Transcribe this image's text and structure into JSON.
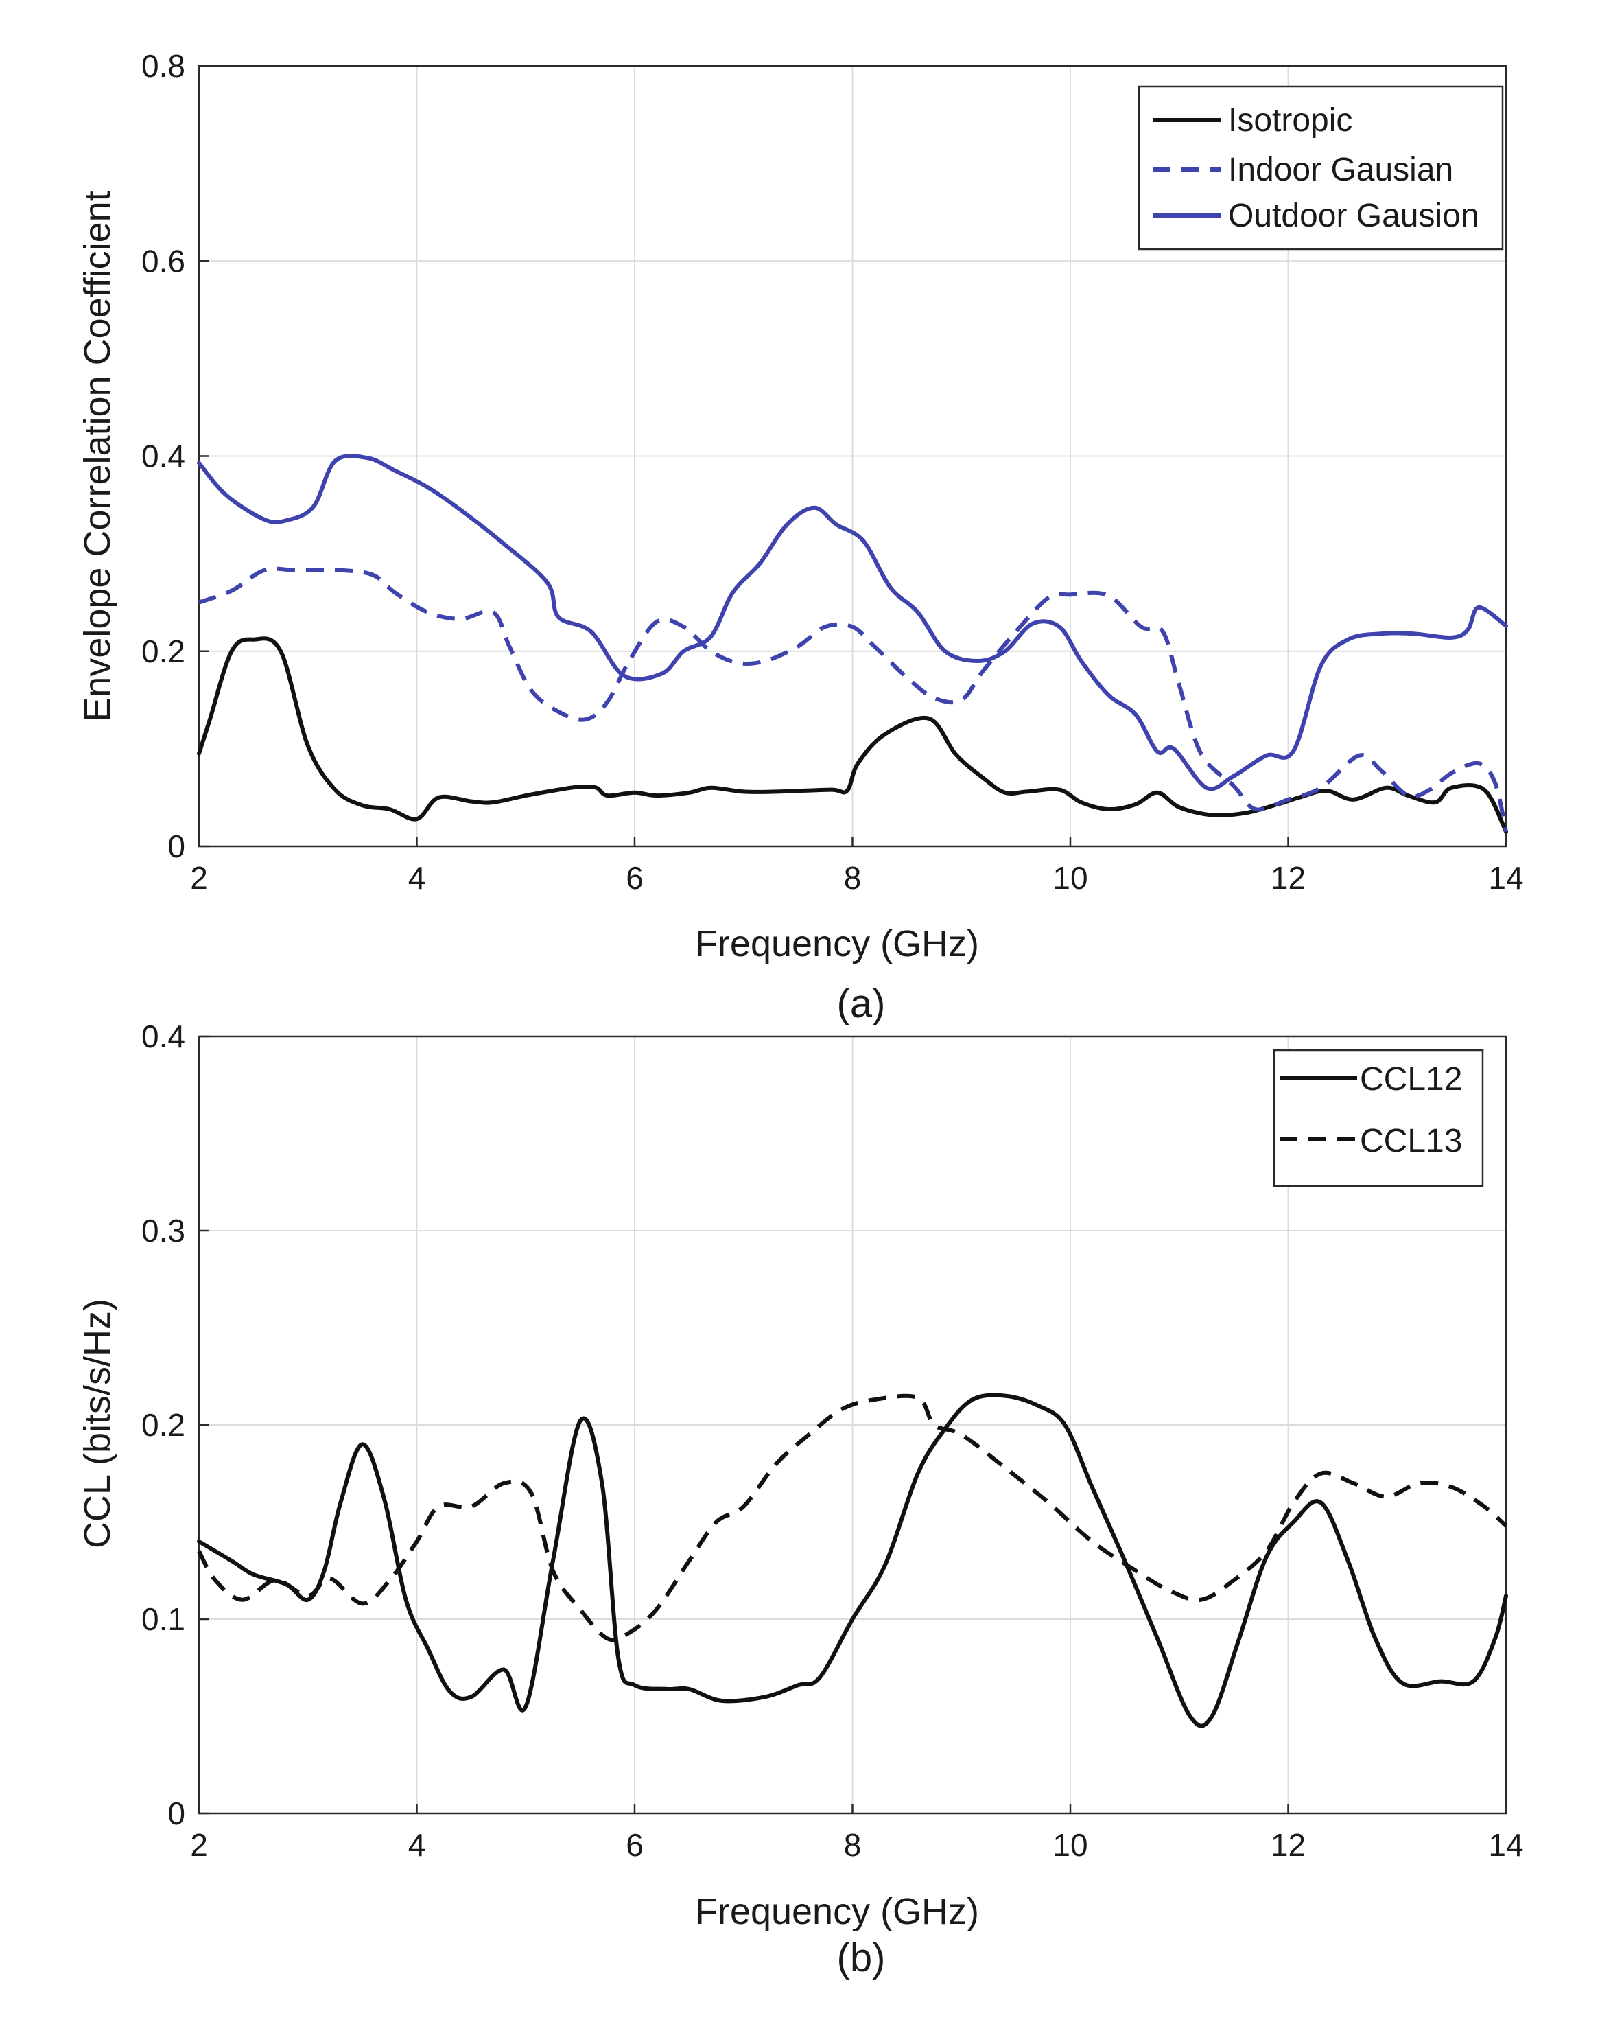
{
  "chart_data": [
    {
      "type": "line",
      "id": "a",
      "caption": "(a)",
      "xlabel": "Frequency (GHz)",
      "ylabel": "Envelope Correlation Coefficient",
      "xlim": [
        2,
        14
      ],
      "ylim": [
        0,
        0.8
      ],
      "xticks": [
        2,
        4,
        6,
        8,
        10,
        12,
        14
      ],
      "yticks": [
        0,
        0.2,
        0.4,
        0.6,
        0.8
      ],
      "xtick_labels": [
        "2",
        "4",
        "6",
        "8",
        "10",
        "12",
        "14"
      ],
      "ytick_labels": [
        "0",
        "0.2",
        "0.4",
        "0.6",
        "0.8"
      ],
      "grid": true,
      "legend_position": "top-right",
      "series": [
        {
          "name": "Isotropic",
          "color": "#111111",
          "dash": "solid",
          "points": [
            [
              2.0,
              0.095
            ],
            [
              2.1,
              0.13
            ],
            [
              2.3,
              0.2
            ],
            [
              2.5,
              0.212
            ],
            [
              2.75,
              0.2
            ],
            [
              3.0,
              0.103
            ],
            [
              3.25,
              0.058
            ],
            [
              3.5,
              0.042
            ],
            [
              3.75,
              0.038
            ],
            [
              4.0,
              0.028
            ],
            [
              4.2,
              0.05
            ],
            [
              4.5,
              0.046
            ],
            [
              4.7,
              0.045
            ],
            [
              5.0,
              0.052
            ],
            [
              5.3,
              0.058
            ],
            [
              5.5,
              0.061
            ],
            [
              5.65,
              0.06
            ],
            [
              5.75,
              0.052
            ],
            [
              6.0,
              0.055
            ],
            [
              6.2,
              0.052
            ],
            [
              6.5,
              0.055
            ],
            [
              6.7,
              0.06
            ],
            [
              7.0,
              0.056
            ],
            [
              7.3,
              0.056
            ],
            [
              7.8,
              0.058
            ],
            [
              7.95,
              0.057
            ],
            [
              8.05,
              0.085
            ],
            [
              8.3,
              0.115
            ],
            [
              8.7,
              0.131
            ],
            [
              8.95,
              0.094
            ],
            [
              9.2,
              0.07
            ],
            [
              9.4,
              0.055
            ],
            [
              9.6,
              0.056
            ],
            [
              9.9,
              0.058
            ],
            [
              10.1,
              0.045
            ],
            [
              10.35,
              0.038
            ],
            [
              10.6,
              0.043
            ],
            [
              10.8,
              0.055
            ],
            [
              11.0,
              0.04
            ],
            [
              11.3,
              0.032
            ],
            [
              11.6,
              0.034
            ],
            [
              11.9,
              0.043
            ],
            [
              12.1,
              0.05
            ],
            [
              12.35,
              0.057
            ],
            [
              12.6,
              0.048
            ],
            [
              12.9,
              0.06
            ],
            [
              13.1,
              0.052
            ],
            [
              13.35,
              0.045
            ],
            [
              13.5,
              0.06
            ],
            [
              13.8,
              0.058
            ],
            [
              14.0,
              0.015
            ]
          ]
        },
        {
          "name": "Indoor Gausian",
          "color": "#3f43ad",
          "dash": "dashed",
          "points": [
            [
              2.0,
              0.25
            ],
            [
              2.3,
              0.262
            ],
            [
              2.6,
              0.283
            ],
            [
              2.9,
              0.283
            ],
            [
              3.3,
              0.283
            ],
            [
              3.6,
              0.278
            ],
            [
              3.8,
              0.26
            ],
            [
              4.1,
              0.24
            ],
            [
              4.4,
              0.233
            ],
            [
              4.7,
              0.24
            ],
            [
              4.85,
              0.205
            ],
            [
              5.05,
              0.16
            ],
            [
              5.3,
              0.138
            ],
            [
              5.55,
              0.13
            ],
            [
              5.75,
              0.148
            ],
            [
              5.95,
              0.19
            ],
            [
              6.2,
              0.23
            ],
            [
              6.45,
              0.225
            ],
            [
              6.7,
              0.2
            ],
            [
              6.95,
              0.188
            ],
            [
              7.2,
              0.19
            ],
            [
              7.5,
              0.205
            ],
            [
              7.75,
              0.225
            ],
            [
              8.0,
              0.225
            ],
            [
              8.2,
              0.205
            ],
            [
              8.5,
              0.173
            ],
            [
              8.75,
              0.152
            ],
            [
              9.0,
              0.15
            ],
            [
              9.2,
              0.18
            ],
            [
              9.5,
              0.22
            ],
            [
              9.8,
              0.255
            ],
            [
              10.0,
              0.258
            ],
            [
              10.35,
              0.257
            ],
            [
              10.65,
              0.225
            ],
            [
              10.85,
              0.22
            ],
            [
              11.0,
              0.165
            ],
            [
              11.2,
              0.095
            ],
            [
              11.5,
              0.062
            ],
            [
              11.7,
              0.038
            ],
            [
              12.0,
              0.048
            ],
            [
              12.3,
              0.06
            ],
            [
              12.65,
              0.093
            ],
            [
              12.85,
              0.078
            ],
            [
              13.1,
              0.052
            ],
            [
              13.3,
              0.058
            ],
            [
              13.5,
              0.075
            ],
            [
              13.75,
              0.085
            ],
            [
              13.9,
              0.065
            ],
            [
              14.0,
              0.015
            ]
          ]
        },
        {
          "name": "Outdoor Gausion",
          "color": "#3f43ad",
          "dash": "solid",
          "points": [
            [
              2.0,
              0.393
            ],
            [
              2.25,
              0.36
            ],
            [
              2.6,
              0.335
            ],
            [
              2.8,
              0.334
            ],
            [
              3.05,
              0.348
            ],
            [
              3.25,
              0.395
            ],
            [
              3.55,
              0.398
            ],
            [
              3.8,
              0.385
            ],
            [
              4.1,
              0.368
            ],
            [
              4.4,
              0.345
            ],
            [
              4.8,
              0.31
            ],
            [
              5.2,
              0.27
            ],
            [
              5.3,
              0.235
            ],
            [
              5.6,
              0.22
            ],
            [
              5.9,
              0.175
            ],
            [
              6.25,
              0.177
            ],
            [
              6.45,
              0.2
            ],
            [
              6.7,
              0.215
            ],
            [
              6.9,
              0.26
            ],
            [
              7.15,
              0.29
            ],
            [
              7.4,
              0.33
            ],
            [
              7.65,
              0.347
            ],
            [
              7.85,
              0.33
            ],
            [
              8.1,
              0.313
            ],
            [
              8.35,
              0.265
            ],
            [
              8.6,
              0.24
            ],
            [
              8.85,
              0.2
            ],
            [
              9.15,
              0.19
            ],
            [
              9.4,
              0.2
            ],
            [
              9.65,
              0.228
            ],
            [
              9.9,
              0.225
            ],
            [
              10.1,
              0.19
            ],
            [
              10.35,
              0.155
            ],
            [
              10.6,
              0.135
            ],
            [
              10.8,
              0.097
            ],
            [
              10.95,
              0.1
            ],
            [
              11.25,
              0.06
            ],
            [
              11.5,
              0.072
            ],
            [
              11.8,
              0.093
            ],
            [
              12.05,
              0.098
            ],
            [
              12.3,
              0.185
            ],
            [
              12.55,
              0.212
            ],
            [
              12.85,
              0.218
            ],
            [
              13.15,
              0.218
            ],
            [
              13.5,
              0.214
            ],
            [
              13.65,
              0.222
            ],
            [
              13.75,
              0.245
            ],
            [
              14.0,
              0.226
            ]
          ]
        }
      ]
    },
    {
      "type": "line",
      "id": "b",
      "caption": "(b)",
      "xlabel": "Frequency (GHz)",
      "ylabel": "CCL (bits/s/Hz)",
      "xlim": [
        2,
        14
      ],
      "ylim": [
        0,
        0.4
      ],
      "xticks": [
        2,
        4,
        6,
        8,
        10,
        12,
        14
      ],
      "yticks": [
        0,
        0.1,
        0.2,
        0.3,
        0.4
      ],
      "xtick_labels": [
        "2",
        "4",
        "6",
        "8",
        "10",
        "12",
        "14"
      ],
      "ytick_labels": [
        "0",
        "0.1",
        "0.2",
        "0.3",
        "0.4"
      ],
      "grid": true,
      "legend_position": "top-right",
      "series": [
        {
          "name": "CCL12",
          "color": "#111111",
          "dash": "solid",
          "points": [
            [
              2.0,
              0.14
            ],
            [
              2.3,
              0.13
            ],
            [
              2.5,
              0.123
            ],
            [
              2.8,
              0.118
            ],
            [
              3.0,
              0.11
            ],
            [
              3.15,
              0.125
            ],
            [
              3.3,
              0.16
            ],
            [
              3.5,
              0.19
            ],
            [
              3.7,
              0.162
            ],
            [
              3.9,
              0.11
            ],
            [
              4.1,
              0.085
            ],
            [
              4.3,
              0.063
            ],
            [
              4.5,
              0.06
            ],
            [
              4.8,
              0.074
            ],
            [
              5.0,
              0.055
            ],
            [
              5.25,
              0.13
            ],
            [
              5.5,
              0.202
            ],
            [
              5.7,
              0.17
            ],
            [
              5.85,
              0.08
            ],
            [
              6.0,
              0.066
            ],
            [
              6.3,
              0.064
            ],
            [
              6.5,
              0.064
            ],
            [
              6.8,
              0.058
            ],
            [
              7.2,
              0.06
            ],
            [
              7.5,
              0.066
            ],
            [
              7.7,
              0.07
            ],
            [
              8.0,
              0.1
            ],
            [
              8.3,
              0.128
            ],
            [
              8.6,
              0.175
            ],
            [
              8.85,
              0.198
            ],
            [
              9.1,
              0.213
            ],
            [
              9.4,
              0.215
            ],
            [
              9.7,
              0.21
            ],
            [
              9.95,
              0.2
            ],
            [
              10.2,
              0.168
            ],
            [
              10.5,
              0.13
            ],
            [
              10.8,
              0.09
            ],
            [
              11.1,
              0.05
            ],
            [
              11.3,
              0.05
            ],
            [
              11.55,
              0.09
            ],
            [
              11.8,
              0.132
            ],
            [
              12.05,
              0.15
            ],
            [
              12.3,
              0.16
            ],
            [
              12.55,
              0.13
            ],
            [
              12.8,
              0.09
            ],
            [
              13.05,
              0.067
            ],
            [
              13.4,
              0.068
            ],
            [
              13.7,
              0.068
            ],
            [
              13.9,
              0.09
            ],
            [
              14.0,
              0.112
            ]
          ]
        },
        {
          "name": "CCL13",
          "color": "#111111",
          "dash": "dashed",
          "points": [
            [
              2.0,
              0.135
            ],
            [
              2.15,
              0.12
            ],
            [
              2.4,
              0.11
            ],
            [
              2.7,
              0.12
            ],
            [
              3.0,
              0.112
            ],
            [
              3.2,
              0.121
            ],
            [
              3.5,
              0.108
            ],
            [
              3.75,
              0.12
            ],
            [
              4.0,
              0.14
            ],
            [
              4.2,
              0.158
            ],
            [
              4.5,
              0.158
            ],
            [
              4.8,
              0.17
            ],
            [
              5.05,
              0.165
            ],
            [
              5.25,
              0.125
            ],
            [
              5.5,
              0.105
            ],
            [
              5.75,
              0.09
            ],
            [
              5.95,
              0.093
            ],
            [
              6.2,
              0.105
            ],
            [
              6.5,
              0.13
            ],
            [
              6.75,
              0.15
            ],
            [
              7.0,
              0.158
            ],
            [
              7.3,
              0.18
            ],
            [
              7.6,
              0.195
            ],
            [
              7.9,
              0.208
            ],
            [
              8.2,
              0.213
            ],
            [
              8.6,
              0.214
            ],
            [
              8.75,
              0.2
            ],
            [
              9.0,
              0.195
            ],
            [
              9.4,
              0.178
            ],
            [
              9.8,
              0.16
            ],
            [
              10.2,
              0.14
            ],
            [
              10.6,
              0.125
            ],
            [
              10.9,
              0.115
            ],
            [
              11.2,
              0.11
            ],
            [
              11.5,
              0.12
            ],
            [
              11.8,
              0.135
            ],
            [
              12.05,
              0.16
            ],
            [
              12.3,
              0.175
            ],
            [
              12.6,
              0.17
            ],
            [
              12.9,
              0.163
            ],
            [
              13.2,
              0.17
            ],
            [
              13.5,
              0.168
            ],
            [
              13.8,
              0.158
            ],
            [
              14.0,
              0.148
            ]
          ]
        }
      ]
    }
  ]
}
